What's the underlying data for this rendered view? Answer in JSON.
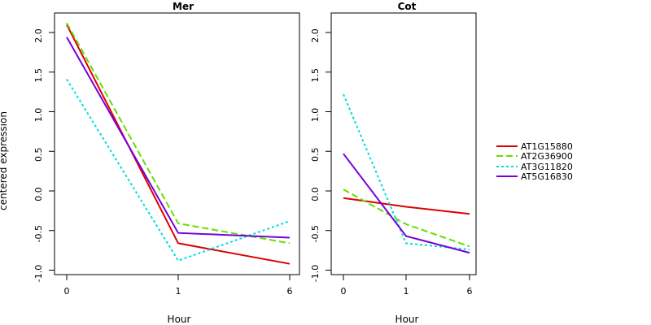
{
  "chart_data": {
    "type": "line",
    "ylabel": "centered expression",
    "xlabel": "Hour",
    "x_categories": [
      "0",
      "1",
      "6"
    ],
    "ylim": [
      -1.0,
      2.2
    ],
    "yticks": [
      -1.0,
      -0.5,
      0.0,
      0.5,
      1.0,
      1.5,
      2.0
    ],
    "ytick_labels": [
      "-1.0",
      "-0.5",
      "0.0",
      "0.5",
      "1.0",
      "1.5",
      "2.0"
    ],
    "legend": {
      "placement": "right",
      "entries": [
        "AT1G15880",
        "AT2G36900",
        "AT3G11820",
        "AT5G16830"
      ]
    },
    "series_styles": [
      {
        "name": "AT1G15880",
        "color": "#dd0000",
        "dash": "solid"
      },
      {
        "name": "AT2G36900",
        "color": "#66dd00",
        "dash": "dashed"
      },
      {
        "name": "AT3G11820",
        "color": "#00dddd",
        "dash": "dotted"
      },
      {
        "name": "AT5G16830",
        "color": "#7700dd",
        "dash": "solid"
      }
    ],
    "panels": [
      {
        "title": "Mer",
        "series": [
          {
            "name": "AT1G15880",
            "values": [
              2.1,
              -0.66,
              -0.92
            ]
          },
          {
            "name": "AT2G36900",
            "values": [
              2.12,
              -0.41,
              -0.66
            ]
          },
          {
            "name": "AT3G11820",
            "values": [
              1.41,
              -0.88,
              -0.38
            ]
          },
          {
            "name": "AT5G16830",
            "values": [
              1.94,
              -0.53,
              -0.59
            ]
          }
        ]
      },
      {
        "title": "Cot",
        "series": [
          {
            "name": "AT1G15880",
            "values": [
              -0.09,
              -0.2,
              -0.29
            ]
          },
          {
            "name": "AT2G36900",
            "values": [
              0.02,
              -0.42,
              -0.7
            ]
          },
          {
            "name": "AT3G11820",
            "values": [
              1.22,
              -0.66,
              -0.74
            ]
          },
          {
            "name": "AT5G16830",
            "values": [
              0.47,
              -0.57,
              -0.78
            ]
          }
        ]
      }
    ]
  }
}
